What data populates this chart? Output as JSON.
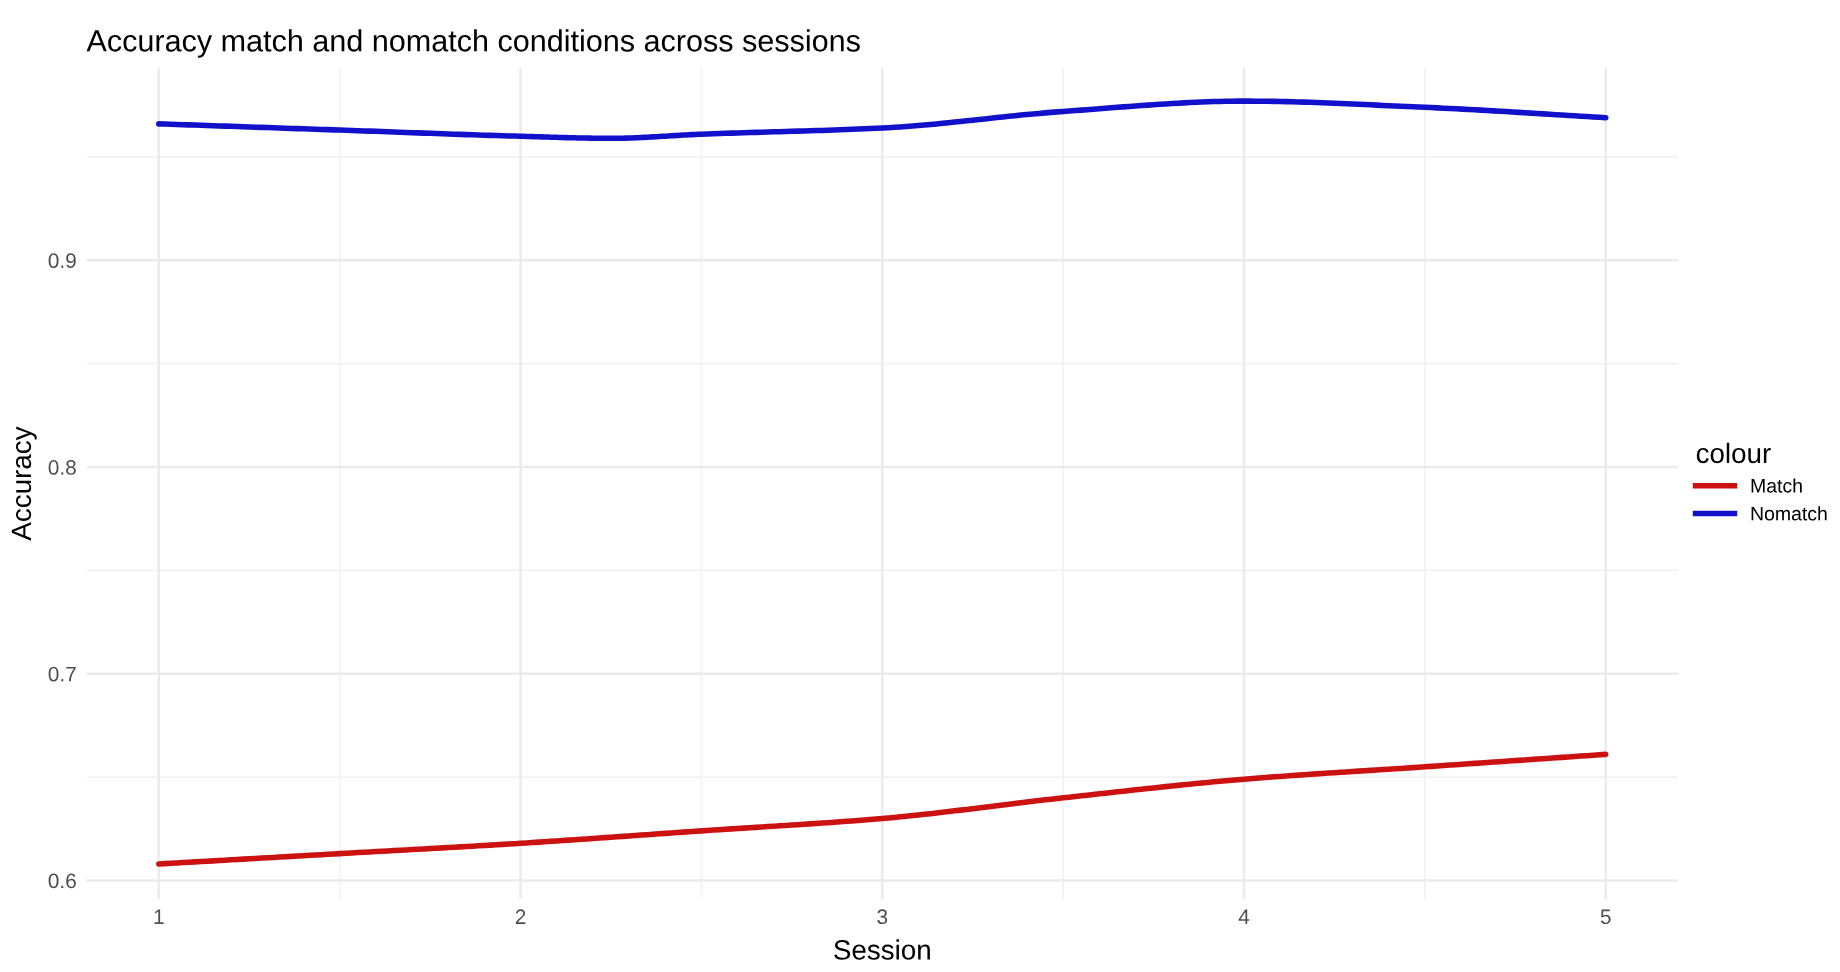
{
  "chart_data": {
    "type": "line",
    "title": "Accuracy match and nomatch conditions across sessions",
    "xlabel": "Session",
    "ylabel": "Accuracy",
    "legend_title": "colour",
    "legend": "right",
    "grid": true,
    "xlim": [
      0.8,
      5.2
    ],
    "xticks": [
      1,
      2,
      3,
      4,
      5
    ],
    "ylim": [
      0.591,
      0.993
    ],
    "yticks": [
      0.6,
      0.7,
      0.8,
      0.9
    ],
    "series": [
      {
        "name": "Match",
        "color": "#cc1111",
        "x": [
          1,
          1.5,
          2,
          2.5,
          3,
          3.5,
          4,
          4.5,
          5
        ],
        "values": [
          0.608,
          0.613,
          0.618,
          0.624,
          0.63,
          0.64,
          0.649,
          0.655,
          0.661
        ]
      },
      {
        "name": "Nomatch",
        "color": "#1111cc",
        "x": [
          1,
          1.5,
          2,
          2.25,
          2.5,
          3,
          3.5,
          4,
          4.5,
          5
        ],
        "values": [
          0.966,
          0.963,
          0.96,
          0.959,
          0.961,
          0.964,
          0.972,
          0.977,
          0.974,
          0.969
        ]
      }
    ]
  }
}
